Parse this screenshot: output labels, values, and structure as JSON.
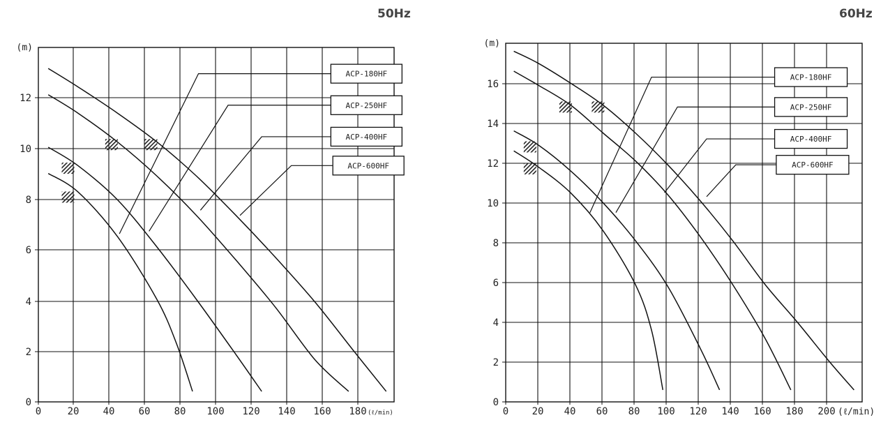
{
  "chart_data": [
    {
      "type": "line",
      "title": "50Hz",
      "xlabel": "(ℓ/min)",
      "ylabel": "(m)",
      "xlim": [
        0,
        180
      ],
      "ylim": [
        0,
        13.5
      ],
      "xticks": [
        "0",
        "20",
        "40",
        "60",
        "80",
        "100",
        "120",
        "140",
        "160",
        "180"
      ],
      "yticks": [
        "0",
        "2",
        "4",
        "6",
        "8",
        "10",
        "12"
      ],
      "grid": true,
      "series": [
        {
          "name": "ACP-180HF",
          "x": [
            5,
            20,
            40,
            60,
            80,
            100,
            120,
            140,
            160,
            176
          ],
          "y": [
            12.7,
            12.0,
            11.0,
            9.9,
            8.6,
            7.1,
            5.5,
            3.8,
            1.9,
            0.4
          ]
        },
        {
          "name": "ACP-250HF",
          "x": [
            5,
            20,
            40,
            60,
            80,
            100,
            120,
            140,
            157
          ],
          "y": [
            11.7,
            11.0,
            9.9,
            8.6,
            7.1,
            5.4,
            3.6,
            1.6,
            0.4
          ]
        },
        {
          "name": "ACP-400HF",
          "x": [
            5,
            20,
            40,
            60,
            80,
            100,
            113
          ],
          "y": [
            9.7,
            9.0,
            7.7,
            5.9,
            3.9,
            1.8,
            0.4
          ]
        },
        {
          "name": "ACP-600HF",
          "x": [
            5,
            20,
            40,
            60,
            70,
            78
          ],
          "y": [
            8.7,
            8.0,
            6.3,
            3.9,
            2.2,
            0.4
          ]
        }
      ],
      "hatch_marks": [
        [
          15,
          8.9
        ],
        [
          15,
          7.8
        ],
        [
          37,
          9.8
        ],
        [
          57,
          9.8
        ]
      ],
      "leaders": [
        {
          "label": "ACP-180HF",
          "pts": [
            [
              41,
              6.4
            ],
            [
              81,
              12.5
            ],
            [
              148,
              12.5
            ]
          ]
        },
        {
          "label": "ACP-250HF",
          "pts": [
            [
              56,
              6.5
            ],
            [
              96,
              11.3
            ],
            [
              148,
              11.3
            ]
          ]
        },
        {
          "label": "ACP-400HF",
          "pts": [
            [
              82,
              7.3
            ],
            [
              113,
              10.1
            ],
            [
              148,
              10.1
            ]
          ]
        },
        {
          "label": "ACP-600HF",
          "pts": [
            [
              102,
              7.1
            ],
            [
              128,
              9.0
            ],
            [
              149,
              9.0
            ]
          ]
        }
      ]
    },
    {
      "type": "line",
      "title": "60Hz",
      "xlabel": "(ℓ/min)",
      "ylabel": "(m)",
      "xlim": [
        0,
        220
      ],
      "ylim": [
        0,
        18
      ],
      "xticks": [
        "0",
        "20",
        "40",
        "60",
        "80",
        "100",
        "120",
        "140",
        "160",
        "180",
        "200"
      ],
      "yticks": [
        "0",
        "2",
        "4",
        "6",
        "8",
        "10",
        "12",
        "14",
        "16"
      ],
      "grid": true,
      "series": [
        {
          "name": "ACP-180HF",
          "x": [
            5,
            20,
            40,
            60,
            80,
            100,
            120,
            140,
            160,
            180,
            200,
            215
          ],
          "y": [
            17.6,
            17.0,
            16.0,
            14.9,
            13.5,
            11.9,
            10.1,
            8.1,
            5.9,
            4.0,
            2.0,
            0.6
          ]
        },
        {
          "name": "ACP-250HF",
          "x": [
            5,
            20,
            40,
            60,
            80,
            100,
            120,
            140,
            160,
            176
          ],
          "y": [
            16.6,
            15.9,
            14.9,
            13.5,
            12.1,
            10.4,
            8.3,
            5.9,
            3.2,
            0.6
          ]
        },
        {
          "name": "ACP-400HF",
          "x": [
            5,
            20,
            40,
            60,
            80,
            100,
            120,
            132
          ],
          "y": [
            13.6,
            12.9,
            11.6,
            10.0,
            8.1,
            5.8,
            2.7,
            0.6
          ]
        },
        {
          "name": "ACP-600HF",
          "x": [
            5,
            20,
            40,
            60,
            80,
            90,
            97
          ],
          "y": [
            12.6,
            11.8,
            10.5,
            8.6,
            5.9,
            3.6,
            0.6
          ]
        }
      ],
      "hatch_marks": [
        [
          15,
          12.8
        ],
        [
          15,
          11.7
        ],
        [
          37,
          14.8
        ],
        [
          57,
          14.8
        ]
      ],
      "leaders": [
        {
          "label": "ACP-180HF",
          "pts": [
            [
              52,
              9.5
            ],
            [
              90,
              16.3
            ],
            [
              166,
              16.3
            ]
          ]
        },
        {
          "label": "ACP-250HF",
          "pts": [
            [
              68,
              9.5
            ],
            [
              106,
              14.8
            ],
            [
              166,
              14.8
            ]
          ]
        },
        {
          "label": "ACP-400HF",
          "pts": [
            [
              98,
              10.5
            ],
            [
              124,
              13.2
            ],
            [
              166,
              13.2
            ]
          ]
        },
        {
          "label": "ACP-600HF",
          "pts": [
            [
              124,
              10.3
            ],
            [
              142,
              11.9
            ],
            [
              167,
              11.9
            ]
          ]
        }
      ]
    }
  ]
}
